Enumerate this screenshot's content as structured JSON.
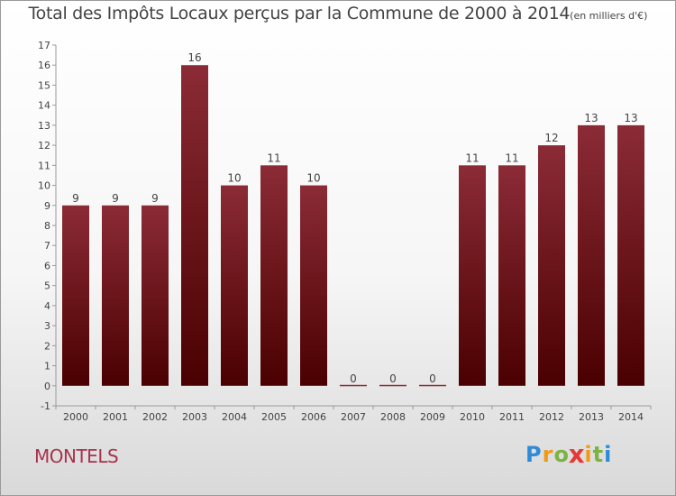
{
  "chart_data": {
    "type": "bar",
    "title": "Total des Impôts Locaux perçus par la Commune de 2000 à 2014",
    "unit_label": "(en milliers d'€)",
    "categories": [
      "2000",
      "2001",
      "2002",
      "2003",
      "2004",
      "2005",
      "2006",
      "2007",
      "2008",
      "2009",
      "2010",
      "2011",
      "2012",
      "2013",
      "2014"
    ],
    "values": [
      9,
      9,
      9,
      16,
      10,
      11,
      10,
      0,
      0,
      0,
      11,
      11,
      12,
      13,
      13
    ],
    "y_ticks": [
      -1,
      0,
      1,
      2,
      3,
      4,
      5,
      6,
      7,
      8,
      9,
      10,
      11,
      12,
      13,
      14,
      15,
      16,
      17
    ],
    "ylim": [
      -1,
      17
    ],
    "xlabel": "",
    "ylabel": "",
    "grid": false,
    "bar_color_top": "#8b2b36",
    "bar_color_bottom": "#4a0000"
  },
  "footer": {
    "commune": "MONTELS",
    "brand": "Proxiti"
  }
}
